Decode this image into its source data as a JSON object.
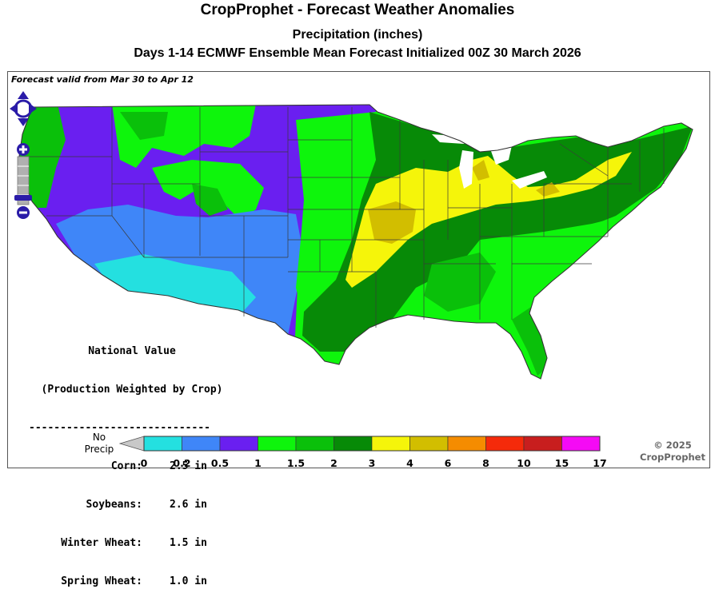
{
  "header": {
    "title": "CropProphet - Forecast Weather Anomalies",
    "subtitle": "Precipitation (inches)",
    "run_info": "Days 1-14 ECMWF Ensemble Mean Forecast Initialized 00Z 30 March 2026"
  },
  "map": {
    "valid_text": "Forecast valid from Mar 30 to Apr 12",
    "region": "Contiguous United States",
    "highest_category_region": "Ohio Valley / Midwest (3-4 in, locally 4-6 in)",
    "lowest_category_region": "Desert Southwest (0-0.2 in)"
  },
  "national_value": {
    "heading_1": "National Value",
    "heading_2": "(Production Weighted by Crop)",
    "divider": "-----------------------------",
    "rows": [
      {
        "crop": "Corn:",
        "value": "2.5 in"
      },
      {
        "crop": "Soybeans:",
        "value": "2.6 in"
      },
      {
        "crop": "Winter Wheat:",
        "value": "1.5 in"
      },
      {
        "crop": "Spring Wheat:",
        "value": "1.0 in"
      }
    ]
  },
  "legend": {
    "no_precip_line1": "No",
    "no_precip_line2": "Precip",
    "no_precip_color": "#c8c8c8",
    "ticks": [
      "0",
      "0.2",
      "0.5",
      "1",
      "1.5",
      "2",
      "3",
      "4",
      "6",
      "8",
      "10",
      "15",
      "17"
    ],
    "colors": [
      "#24e0e0",
      "#3f86f8",
      "#6a1ff0",
      "#0ef50c",
      "#0ac00a",
      "#078a07",
      "#f5f50a",
      "#d2be00",
      "#f58c00",
      "#f52a0a",
      "#c81e1e",
      "#f50af5"
    ]
  },
  "controls": {
    "pan_icon": "pan-arrows-icon",
    "zoom_in_icon": "plus-icon",
    "zoom_out_icon": "minus-icon"
  },
  "copyright": {
    "line1": "© 2025",
    "line2": "CropProphet"
  }
}
